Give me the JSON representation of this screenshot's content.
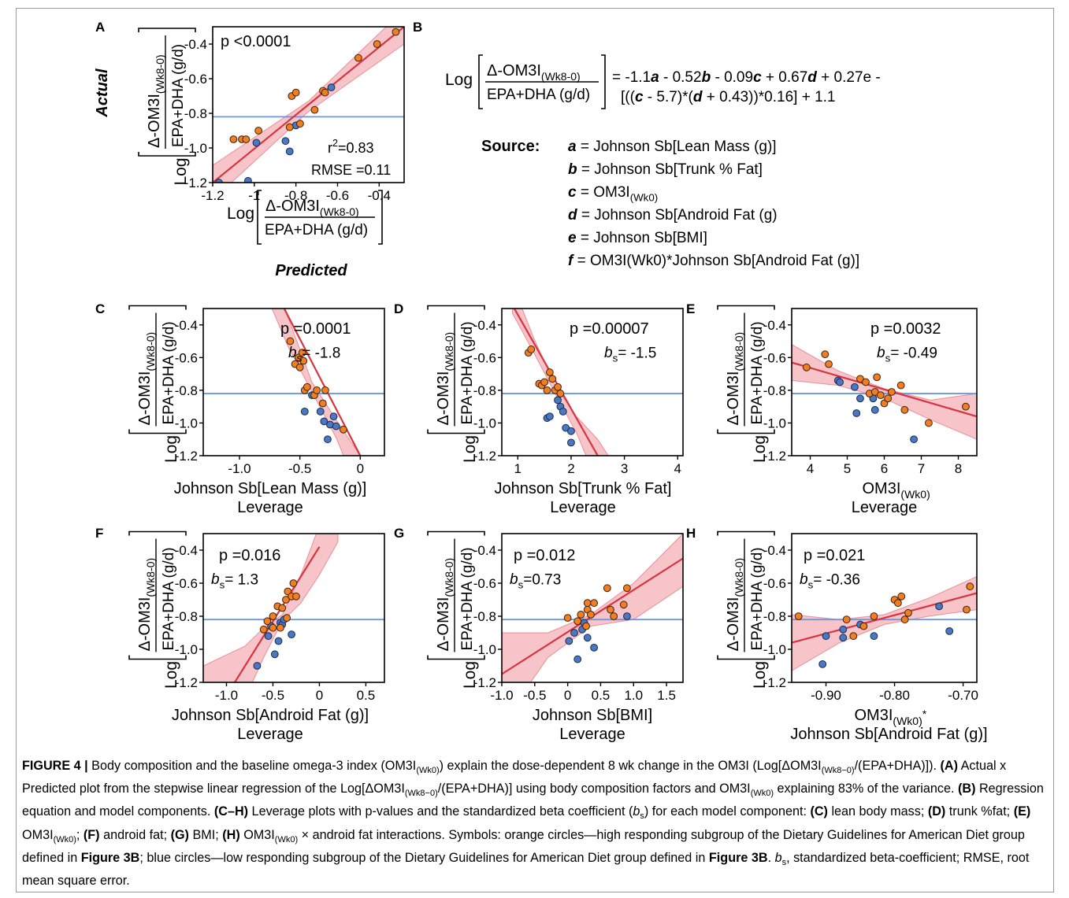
{
  "colors": {
    "orange": "#f07f22",
    "blue": "#4a78c2",
    "fit": "#d8333f",
    "band": "#f4b0b7",
    "mean_line": "#6d96e0"
  },
  "panel_letters": [
    "A",
    "B",
    "C",
    "D",
    "E",
    "F",
    "G",
    "H"
  ],
  "ylabel": {
    "prefix": "Log",
    "numerator": "Δ-OM3I",
    "numerator_sub": "(Wk8-0)",
    "denominator": "EPA+DHA (g/d)"
  },
  "panelA": {
    "y_side_label": "Actual",
    "x_side_label": "Predicted",
    "p_text": "p <0.0001",
    "r2_label": "r",
    "r2_value": "=0.83",
    "rmse_text": "RMSE =0.11"
  },
  "panelB": {
    "equation_line1": "= -1.1a - 0.52b - 0.09c + 0.67d + 0.27e -",
    "equation_line2": "[((c - 5.7)*(d + 0.43))*0.16] + 1.1",
    "source_label": "Source:",
    "sources": [
      {
        "var": "a",
        "text": "= Johnson Sb[Lean Mass (g)]"
      },
      {
        "var": "b",
        "text": "= Johnson Sb[Trunk % Fat]"
      },
      {
        "var": "c",
        "text": "= OM3I",
        "sub": "(Wk0)"
      },
      {
        "var": "d",
        "text": "= Johnson Sb[Android Fat (g)"
      },
      {
        "var": "e",
        "text": "= Johnson Sb[BMI]"
      },
      {
        "var": "f",
        "text": "= OM3I(Wk0)*Johnson Sb[Android Fat (g)]"
      }
    ]
  },
  "chart_data": [
    {
      "id": "A",
      "type": "scatter",
      "xlim": [
        -1.2,
        -0.28
      ],
      "ylim": [
        -1.2,
        -0.3
      ],
      "xticks": [
        -1.2,
        -1,
        -0.8,
        -0.6,
        -0.4
      ],
      "xticklabels": [
        "-1.2",
        "-1",
        "-0.8",
        "-0.6",
        "-0.4"
      ],
      "yticks": [
        -1.2,
        -1.0,
        -0.8,
        -0.6,
        -0.4
      ],
      "yticklabels": [
        "-1.2",
        "-1.0",
        "-0.8",
        "-0.6",
        "-0.4"
      ],
      "mean_y": -0.82,
      "fit": {
        "x": [
          -1.2,
          -0.28
        ],
        "y": [
          -1.2,
          -0.3
        ]
      },
      "band": {
        "x": [
          -1.2,
          -0.74,
          -0.28
        ],
        "lo": [
          -1.3,
          -0.79,
          -0.4
        ],
        "hi": [
          -1.1,
          -0.73,
          -0.2
        ]
      },
      "orange": [
        [
          -1.1,
          -0.95
        ],
        [
          -1.06,
          -0.95
        ],
        [
          -1.04,
          -0.95
        ],
        [
          -0.98,
          -0.9
        ],
        [
          -0.83,
          -0.88
        ],
        [
          -0.82,
          -0.7
        ],
        [
          -0.8,
          -0.68
        ],
        [
          -0.78,
          -0.86
        ],
        [
          -0.71,
          -0.78
        ],
        [
          -0.67,
          -0.67
        ],
        [
          -0.66,
          -0.68
        ],
        [
          -0.5,
          -0.48
        ],
        [
          -0.41,
          -0.4
        ],
        [
          -0.32,
          -0.33
        ]
      ],
      "blue": [
        [
          -1.17,
          -1.2
        ],
        [
          -1.03,
          -1.19
        ],
        [
          -0.99,
          -0.97
        ],
        [
          -0.85,
          -0.96
        ],
        [
          -0.83,
          -1.02
        ],
        [
          -0.8,
          -0.87
        ],
        [
          -0.63,
          -0.65
        ]
      ],
      "xlabel_lines": [
        "Log",
        "Δ-OM3I(Wk8-0)",
        "EPA+DHA (g/d)"
      ]
    },
    {
      "id": "C",
      "type": "scatter",
      "xlim": [
        -1.3,
        0.2
      ],
      "ylim": [
        -1.2,
        -0.3
      ],
      "xticks": [
        -1.0,
        -0.5,
        0
      ],
      "xticklabels": [
        "-1.0",
        "-0.5",
        "0"
      ],
      "yticks": [
        -1.2,
        -1.0,
        -0.8,
        -0.6,
        -0.4
      ],
      "yticklabels": [
        "-1.2",
        "-1.0",
        "-0.8",
        "-0.6",
        "-0.4"
      ],
      "mean_y": -0.82,
      "fit": {
        "x": [
          -0.7,
          0.0
        ],
        "y": [
          -0.2,
          -1.2
        ]
      },
      "band": {
        "x": [
          -0.8,
          -0.6,
          -0.4,
          -0.2,
          0.0
        ],
        "lo": [
          -0.18,
          -0.53,
          -0.81,
          -1.09,
          -1.45
        ],
        "hi": [
          0.1,
          -0.35,
          -0.75,
          -0.98,
          -1.2
        ]
      },
      "orange": [
        [
          -0.58,
          -0.5
        ],
        [
          -0.54,
          -0.64
        ],
        [
          -0.51,
          -0.6
        ],
        [
          -0.5,
          -0.66
        ],
        [
          -0.48,
          -0.57
        ],
        [
          -0.46,
          -0.8
        ],
        [
          -0.44,
          -0.78
        ],
        [
          -0.47,
          -0.62
        ],
        [
          -0.38,
          -0.83
        ],
        [
          -0.36,
          -0.8
        ],
        [
          -0.31,
          -0.88
        ],
        [
          -0.29,
          -0.8
        ],
        [
          -0.14,
          -1.04
        ]
      ],
      "blue": [
        [
          -0.46,
          -0.93
        ],
        [
          -0.33,
          -0.93
        ],
        [
          -0.3,
          -0.99
        ],
        [
          -0.25,
          -1.01
        ],
        [
          -0.27,
          -1.1
        ],
        [
          -0.22,
          -0.96
        ],
        [
          -0.2,
          -1.02
        ],
        [
          -0.4,
          -0.83
        ]
      ],
      "p_text": "p =0.0001",
      "bs_value": "= -1.8",
      "xlabel": "Johnson Sb[Lean Mass (g)]",
      "xlabel2": "Leverage"
    },
    {
      "id": "D",
      "type": "scatter",
      "xlim": [
        0.7,
        4.1
      ],
      "ylim": [
        -1.2,
        -0.3
      ],
      "xticks": [
        1,
        2,
        3,
        4
      ],
      "xticklabels": [
        "1",
        "2",
        "3",
        "4"
      ],
      "yticks": [
        -1.2,
        -1.0,
        -0.8,
        -0.6,
        -0.4
      ],
      "yticklabels": [
        "-1.2",
        "-1.0",
        "-0.8",
        "-0.6",
        "-0.4"
      ],
      "mean_y": -0.82,
      "fit": {
        "x": [
          0.9,
          2.5
        ],
        "y": [
          -0.28,
          -1.2
        ]
      },
      "band": {
        "x": [
          0.9,
          1.3,
          1.7,
          2.1,
          2.5,
          2.9
        ],
        "lo": [
          -0.33,
          -0.57,
          -0.82,
          -1.06,
          -1.37,
          -1.65
        ],
        "hi": [
          -0.15,
          -0.48,
          -0.77,
          -0.96,
          -1.1,
          -1.3
        ]
      },
      "orange": [
        [
          1.2,
          -0.57
        ],
        [
          1.25,
          -0.55
        ],
        [
          1.4,
          -0.76
        ],
        [
          1.45,
          -0.77
        ],
        [
          1.5,
          -0.75
        ],
        [
          1.55,
          -0.8
        ],
        [
          1.6,
          -0.69
        ],
        [
          1.65,
          -0.73
        ],
        [
          1.7,
          -0.8
        ],
        [
          1.75,
          -0.78
        ],
        [
          1.8,
          -0.82
        ]
      ],
      "blue": [
        [
          1.55,
          -0.97
        ],
        [
          1.6,
          -0.96
        ],
        [
          1.8,
          -0.9
        ],
        [
          1.85,
          -0.93
        ],
        [
          1.9,
          -1.03
        ],
        [
          2.0,
          -1.05
        ],
        [
          2.0,
          -1.12
        ],
        [
          1.75,
          -0.86
        ]
      ],
      "p_text": "p =0.00007",
      "bs_value": "= -1.5",
      "xlabel": "Johnson Sb[Trunk % Fat]",
      "xlabel2": "Leverage"
    },
    {
      "id": "E",
      "type": "scatter",
      "xlim": [
        3.5,
        8.5
      ],
      "ylim": [
        -1.2,
        -0.3
      ],
      "xticks": [
        4,
        5,
        6,
        7,
        8
      ],
      "xticklabels": [
        "4",
        "5",
        "6",
        "7",
        "8"
      ],
      "yticks": [
        -1.2,
        -1.0,
        -0.8,
        -0.6,
        -0.4
      ],
      "yticklabels": [
        "-1.2",
        "-1.0",
        "-0.8",
        "-0.6",
        "-0.4"
      ],
      "mean_y": -0.82,
      "fit": {
        "x": [
          3.5,
          8.5
        ],
        "y": [
          -0.63,
          -0.96
        ]
      },
      "band": {
        "x": [
          3.5,
          4.75,
          6.0,
          7.25,
          8.5
        ],
        "lo": [
          -0.74,
          -0.77,
          -0.85,
          -0.98,
          -1.1
        ],
        "hi": [
          -0.52,
          -0.68,
          -0.79,
          -0.86,
          -0.82
        ]
      },
      "orange": [
        [
          3.9,
          -0.66
        ],
        [
          4.4,
          -0.58
        ],
        [
          4.5,
          -0.64
        ],
        [
          5.35,
          -0.73
        ],
        [
          5.5,
          -0.75
        ],
        [
          5.6,
          -0.82
        ],
        [
          5.75,
          -0.81
        ],
        [
          5.8,
          -0.72
        ],
        [
          5.9,
          -0.83
        ],
        [
          6.0,
          -0.88
        ],
        [
          6.1,
          -0.85
        ],
        [
          6.2,
          -0.81
        ],
        [
          6.45,
          -0.77
        ],
        [
          6.55,
          -0.92
        ],
        [
          7.2,
          -1.0
        ],
        [
          8.2,
          -0.9
        ]
      ],
      "blue": [
        [
          4.75,
          -0.74
        ],
        [
          4.8,
          -0.75
        ],
        [
          5.2,
          -0.78
        ],
        [
          5.25,
          -0.94
        ],
        [
          5.35,
          -0.85
        ],
        [
          5.7,
          -0.85
        ],
        [
          5.75,
          -0.92
        ],
        [
          6.8,
          -1.1
        ]
      ],
      "p_text": "p =0.0032",
      "bs_value": "= -0.49",
      "xlabel": "OM3I",
      "xlabel_sub": "(Wk0)",
      "xlabel2": "Leverage"
    },
    {
      "id": "F",
      "type": "scatter",
      "xlim": [
        -1.25,
        0.7
      ],
      "ylim": [
        -1.2,
        -0.3
      ],
      "xticks": [
        -1.0,
        -0.5,
        0,
        0.5
      ],
      "xticklabels": [
        "-1.0",
        "-0.5",
        "0",
        "0.5"
      ],
      "yticks": [
        -1.2,
        -1.0,
        -0.8,
        -0.6,
        -0.4
      ],
      "yticklabels": [
        "-1.2",
        "-1.0",
        "-0.8",
        "-0.6",
        "-0.4"
      ],
      "mean_y": -0.82,
      "fit": {
        "x": [
          -1.0,
          0.0
        ],
        "y": [
          -1.28,
          -0.38
        ]
      },
      "band": {
        "x": [
          -1.25,
          -0.8,
          -0.6,
          -0.4,
          -0.2,
          0.0,
          0.2
        ],
        "lo": [
          -1.9,
          -1.3,
          -1.05,
          -0.83,
          -0.72,
          -0.55,
          -0.35
        ],
        "hi": [
          -1.1,
          -0.98,
          -0.87,
          -0.79,
          -0.55,
          -0.25,
          0.05
        ]
      },
      "orange": [
        [
          -0.6,
          -0.88
        ],
        [
          -0.56,
          -0.83
        ],
        [
          -0.5,
          -0.8
        ],
        [
          -0.45,
          -0.74
        ],
        [
          -0.4,
          -0.75
        ],
        [
          -0.36,
          -0.7
        ],
        [
          -0.34,
          -0.65
        ],
        [
          -0.3,
          -0.68
        ],
        [
          -0.28,
          -0.6
        ],
        [
          -0.25,
          -0.68
        ],
        [
          -0.35,
          -0.81
        ],
        [
          -0.42,
          -0.87
        ],
        [
          -0.5,
          -0.87
        ]
      ],
      "blue": [
        [
          -0.67,
          -1.1
        ],
        [
          -0.55,
          -0.92
        ],
        [
          -0.52,
          -0.86
        ],
        [
          -0.48,
          -1.03
        ],
        [
          -0.44,
          -0.95
        ],
        [
          -0.42,
          -0.84
        ],
        [
          -0.4,
          -0.85
        ],
        [
          -0.3,
          -0.91
        ],
        [
          -0.38,
          -0.82
        ]
      ],
      "p_text": "p =0.016",
      "bs_value": "= 1.3",
      "xlabel": "Johnson Sb[Android Fat (g)]",
      "xlabel2": "Leverage"
    },
    {
      "id": "G",
      "type": "scatter",
      "xlim": [
        -1.0,
        1.75
      ],
      "ylim": [
        -1.2,
        -0.3
      ],
      "xticks": [
        -1.0,
        -0.5,
        0,
        0.5,
        1.0,
        1.5
      ],
      "xticklabels": [
        "-1.0",
        "-0.5",
        "0",
        "0.5",
        "1.0",
        "1.5"
      ],
      "yticks": [
        -1.2,
        -1.0,
        -0.8,
        -0.6,
        -0.4
      ],
      "yticklabels": [
        "-1.2",
        "-1.0",
        "-0.8",
        "-0.6",
        "-0.4"
      ],
      "mean_y": -0.82,
      "fit": {
        "x": [
          -1.0,
          1.75
        ],
        "y": [
          -1.15,
          -0.45
        ]
      },
      "band": {
        "x": [
          -1.0,
          -0.3,
          0.35,
          1.0,
          1.75
        ],
        "lo": [
          -1.45,
          -1.05,
          -0.86,
          -0.82,
          -0.62
        ],
        "hi": [
          -0.9,
          -0.9,
          -0.79,
          -0.6,
          -0.3
        ]
      },
      "orange": [
        [
          0.0,
          -0.81
        ],
        [
          0.15,
          -0.83
        ],
        [
          0.2,
          -0.79
        ],
        [
          0.28,
          -0.86
        ],
        [
          0.3,
          -0.76
        ],
        [
          0.3,
          -0.72
        ],
        [
          0.35,
          -0.79
        ],
        [
          0.4,
          -0.72
        ],
        [
          0.6,
          -0.63
        ],
        [
          0.65,
          -0.76
        ],
        [
          0.7,
          -0.8
        ],
        [
          0.9,
          -0.63
        ],
        [
          0.85,
          -0.73
        ]
      ],
      "blue": [
        [
          0.02,
          -0.95
        ],
        [
          0.1,
          -0.9
        ],
        [
          0.15,
          -1.06
        ],
        [
          0.22,
          -0.88
        ],
        [
          0.25,
          -0.84
        ],
        [
          0.3,
          -0.93
        ],
        [
          0.4,
          -0.99
        ],
        [
          0.9,
          -0.8
        ]
      ],
      "p_text": "p =0.012",
      "bs_value": "=0.73",
      "xlabel": "Johnson Sb[BMI]",
      "xlabel2": "Leverage"
    },
    {
      "id": "H",
      "type": "scatter",
      "xlim": [
        -0.95,
        -0.68
      ],
      "ylim": [
        -1.2,
        -0.3
      ],
      "xticks": [
        -0.9,
        -0.8,
        -0.7
      ],
      "xticklabels": [
        "-0.90",
        "-0.80",
        "-0.70"
      ],
      "yticks": [
        -1.2,
        -1.0,
        -0.8,
        -0.6,
        -0.4
      ],
      "yticklabels": [
        "-1.2",
        "-1.0",
        "-0.8",
        "-0.6",
        "-0.4"
      ],
      "mean_y": -0.82,
      "fit": {
        "x": [
          -0.95,
          -0.68
        ],
        "y": [
          -0.96,
          -0.66
        ]
      },
      "band": {
        "x": [
          -0.95,
          -0.88,
          -0.815,
          -0.75,
          -0.68
        ],
        "lo": [
          -1.13,
          -0.96,
          -0.85,
          -0.8,
          -0.76
        ],
        "hi": [
          -0.79,
          -0.82,
          -0.79,
          -0.69,
          -0.56
        ]
      },
      "orange": [
        [
          -0.94,
          -0.8
        ],
        [
          -0.87,
          -0.82
        ],
        [
          -0.86,
          -0.92
        ],
        [
          -0.845,
          -0.86
        ],
        [
          -0.83,
          -0.8
        ],
        [
          -0.8,
          -0.7
        ],
        [
          -0.795,
          -0.72
        ],
        [
          -0.79,
          -0.68
        ],
        [
          -0.785,
          -0.82
        ],
        [
          -0.78,
          -0.78
        ],
        [
          -0.69,
          -0.62
        ],
        [
          -0.695,
          -0.76
        ]
      ],
      "blue": [
        [
          -0.9,
          -0.92
        ],
        [
          -0.905,
          -1.09
        ],
        [
          -0.875,
          -0.88
        ],
        [
          -0.875,
          -0.93
        ],
        [
          -0.85,
          -0.85
        ],
        [
          -0.83,
          -0.92
        ],
        [
          -0.735,
          -0.74
        ],
        [
          -0.72,
          -0.89
        ]
      ],
      "p_text": "p =0.021",
      "bs_value": "= -0.36",
      "xlabel": "OM3I",
      "xlabel_sub": "(Wk0)",
      "xlabel_star": "*",
      "xlabel2": "Johnson Sb[Android Fat (g)]"
    }
  ],
  "caption": {
    "title": "FIGURE 4 |",
    "line1_a": " Body composition and the baseline omega-3 index (OM3I",
    "sub_wk0": "(Wk0)",
    "line1_b": ") explain the dose-dependent 8 wk change in the OM3I (Log[ΔOM3I",
    "sub_wk8": "(Wk8−0)",
    "line1_c": "/(EPA+DHA)]).",
    "A_label": "(A)",
    "A_text1": " Actual x Predicted plot from the stepwise linear regression of the Log[ΔOM3I",
    "A_text2": "/(EPA+DHA)] using body composition factors and OM3I",
    "A_text3": " explaining 83% of the variance.",
    "B_label": "(B)",
    "B_text": " Regression equation and model components.",
    "CH_label": "(C–H)",
    "CH_text": " Leverage plots with p-values and the standardized beta coefficient (",
    "bs": "b",
    "bs_sub": "s",
    "CH_text2": ") for each model component:",
    "C_label": "(C)",
    "C_text": " lean body mass;",
    "D_label": "(D)",
    "D_text": " trunk %fat;",
    "E_label": "(E)",
    "E_text": " OM3I",
    "E_text2": ";",
    "F_label": "(F)",
    "F_text": " android fat;",
    "G_label": "(G)",
    "G_text": " BMI;",
    "H_label": "(H)",
    "H_text": " OM3I",
    "H_text2": " × android fat interactions. Symbols: orange circles—high responding subgroup of the Dietary Guidelines for American Diet group defined in",
    "fig3b": "Figure 3B",
    "text_blue": "; blue circles—low responding subgroup of the Dietary Guidelines for American Diet group defined in",
    "text_end": ". ",
    "text_end2": ", standardized beta-coefficient; RMSE, root mean square error."
  }
}
